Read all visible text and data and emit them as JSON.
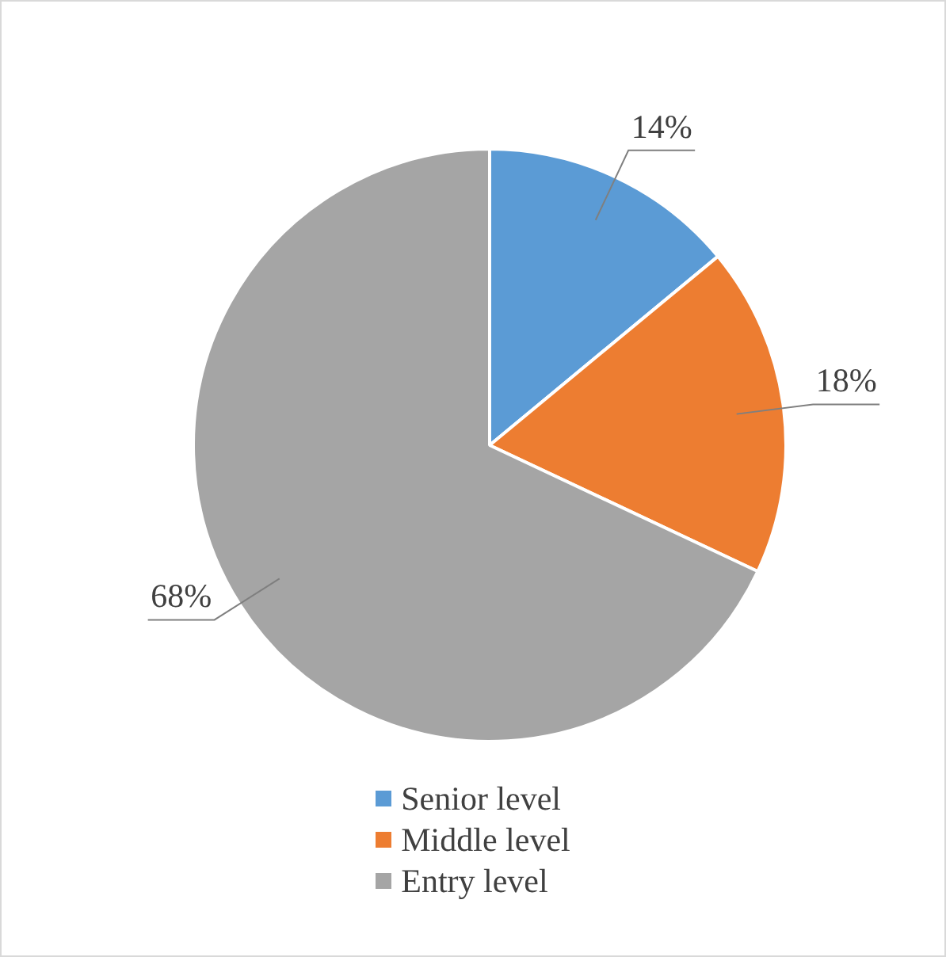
{
  "chart_data": {
    "type": "pie",
    "categories": [
      "Senior level",
      "Middle level",
      "Entry level"
    ],
    "values": [
      14,
      18,
      68
    ],
    "colors": [
      "#5b9bd5",
      "#ed7d31",
      "#a5a5a5"
    ],
    "value_labels": [
      "14%",
      "18%",
      "68%"
    ],
    "legend": "bottom"
  }
}
